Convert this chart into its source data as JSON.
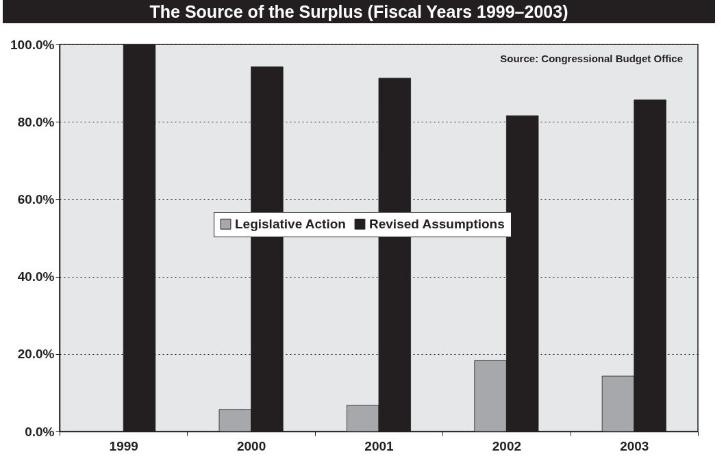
{
  "chart_data": {
    "type": "bar",
    "title": "The Source of the Surplus (Fiscal Years 1999–2003)",
    "categories": [
      "1999",
      "2000",
      "2001",
      "2002",
      "2003"
    ],
    "series": [
      {
        "name": "Legislative Action",
        "color": "#a7a8ab",
        "values": [
          null,
          5.7,
          6.8,
          18.3,
          14.3
        ]
      },
      {
        "name": "Revised Assumptions",
        "color": "#231f20",
        "values": [
          100,
          94.2,
          91.3,
          81.6,
          85.7
        ]
      }
    ],
    "ylim": [
      0,
      100
    ],
    "yticks": [
      {
        "value": 0,
        "label": "0.0%"
      },
      {
        "value": 20,
        "label": "20.0%"
      },
      {
        "value": 40,
        "label": "40.0%"
      },
      {
        "value": 60,
        "label": "60.0%"
      },
      {
        "value": 80,
        "label": "80.0%"
      },
      {
        "value": 100,
        "label": "100.0%"
      }
    ],
    "grid": "y",
    "legend": "center",
    "annotations": [
      "Source:  Congressional Budget Office"
    ]
  }
}
